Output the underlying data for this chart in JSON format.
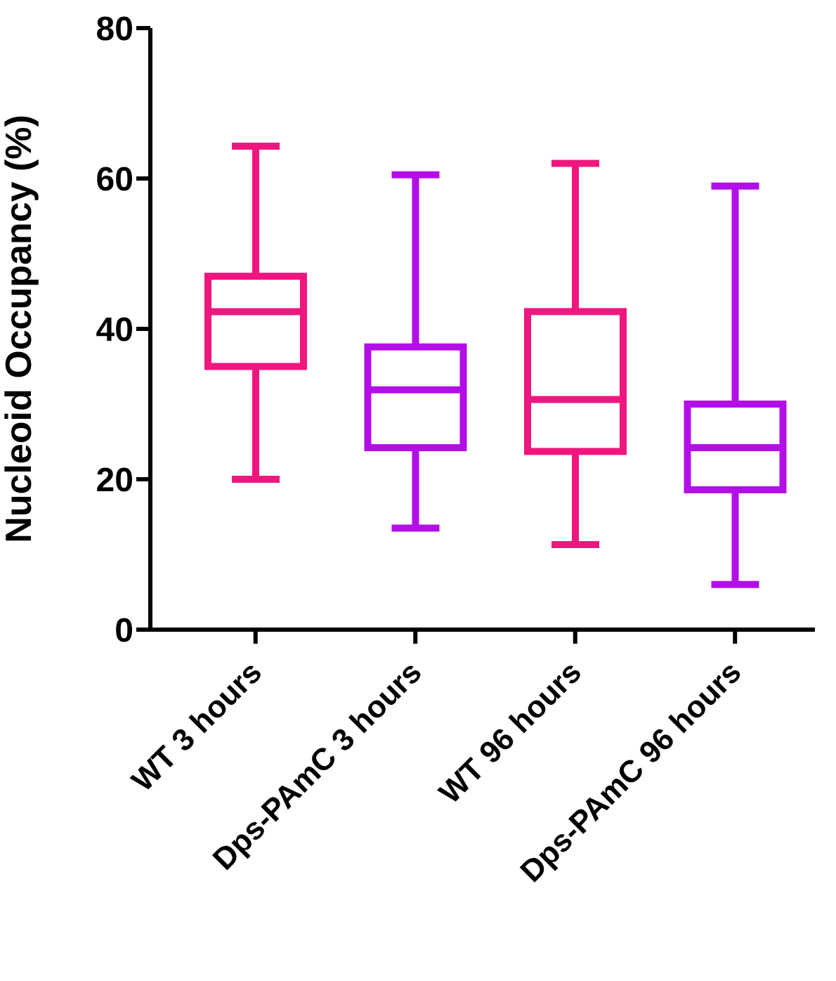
{
  "chart_data": {
    "type": "box",
    "ylabel": "Nucleoid Occupancy (%)",
    "categories": [
      "WT 3 hours",
      "Dps-PAmC 3 hours",
      "WT 96 hours",
      "Dps-PAmC 96 hours"
    ],
    "boxes": [
      {
        "low": 20,
        "q1": 35,
        "median": 42.3,
        "q3": 47,
        "high": 64.3
      },
      {
        "low": 13.5,
        "q1": 24.2,
        "median": 31.9,
        "q3": 37.6,
        "high": 60.5
      },
      {
        "low": 11.3,
        "q1": 23.7,
        "median": 30.6,
        "q3": 42.3,
        "high": 62
      },
      {
        "low": 6,
        "q1": 18.6,
        "median": 24.2,
        "q3": 30,
        "high": 59
      }
    ],
    "colors": [
      "#f0167f",
      "#b30ee8",
      "#f0167f",
      "#b30ee8"
    ],
    "ylim": [
      0,
      80
    ],
    "yticks": [
      0,
      20,
      40,
      60,
      80
    ],
    "grid": false,
    "legend": false
  }
}
